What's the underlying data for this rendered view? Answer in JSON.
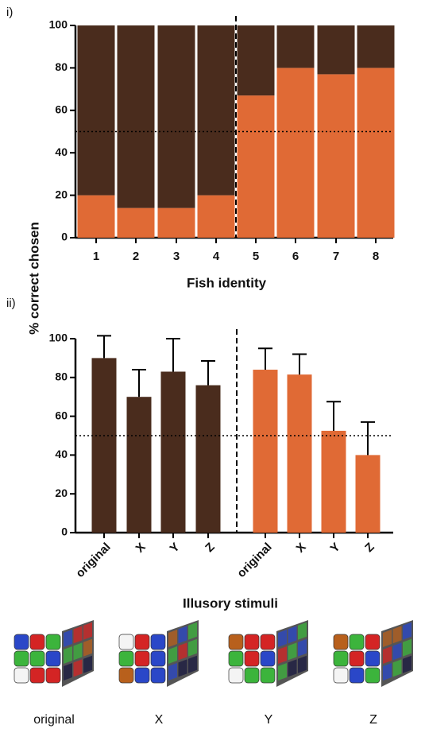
{
  "chart_data": [
    {
      "type": "stacked-bar",
      "panel": "i)",
      "ylabel": "% correct chosen",
      "xlabel": "Fish identity",
      "categories": [
        "1",
        "2",
        "3",
        "4",
        "5",
        "6",
        "7",
        "8"
      ],
      "series": [
        {
          "color": "#e06a35",
          "values": [
            20,
            14,
            14,
            20,
            67,
            80,
            77,
            80
          ]
        },
        {
          "color": "#4a2c1d",
          "values": [
            80,
            86,
            86,
            80,
            33,
            20,
            23,
            20
          ]
        }
      ],
      "ylim": [
        0,
        100
      ],
      "yticks": [
        0,
        20,
        40,
        60,
        80,
        100
      ],
      "reference_line": 50
    },
    {
      "type": "error-bar",
      "panel": "ii)",
      "xlabel": "Illusory stimuli",
      "categories": [
        "original",
        "X",
        "Y",
        "Z",
        "original",
        "X",
        "Y",
        "Z"
      ],
      "values": [
        90,
        70,
        83,
        76,
        84,
        81.5,
        52.5,
        40
      ],
      "errors": [
        11.5,
        14,
        17,
        12.5,
        11,
        10.5,
        15,
        17
      ],
      "colors": [
        "#4a2c1d",
        "#4a2c1d",
        "#4a2c1d",
        "#4a2c1d",
        "#e06a35",
        "#e06a35",
        "#e06a35",
        "#e06a35"
      ],
      "ylim": [
        0,
        100
      ],
      "yticks": [
        0,
        20,
        40,
        60,
        80,
        100
      ],
      "reference_line": 50
    }
  ],
  "images": {
    "labels": [
      "original",
      "X",
      "Y",
      "Z"
    ]
  }
}
